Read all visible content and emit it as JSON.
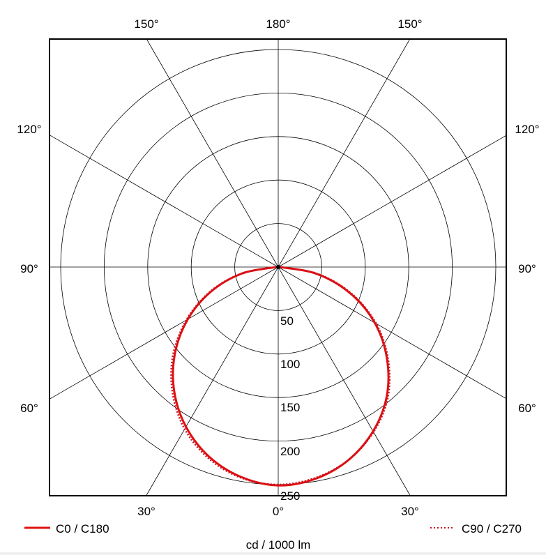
{
  "chart_data": {
    "type": "polar",
    "unit_label": "cd / 1000 lm",
    "radial_ticks": [
      50,
      100,
      150,
      200,
      250
    ],
    "radial_max": 262,
    "angle_labels": {
      "top_left": "150°",
      "top": "180°",
      "top_right": "150°",
      "left_120": "120°",
      "right_120": "120°",
      "left_90": "90°",
      "right_90": "90°",
      "left_60": "60°",
      "right_60": "60°",
      "bottom_left": "30°",
      "bottom": "0°",
      "bottom_right": "30°"
    },
    "angles": [
      0,
      10,
      20,
      30,
      40,
      50,
      60,
      70,
      80,
      90
    ],
    "series": [
      {
        "name": "C0 / C180",
        "style": "solid",
        "color": "#e01010",
        "right_values": [
          251,
          247,
          236,
          218,
          194,
          163,
          128,
          88,
          45,
          2
        ],
        "left_values": [
          251,
          245,
          232,
          212,
          186,
          155,
          120,
          82,
          42,
          2
        ]
      },
      {
        "name": "C90 / C270",
        "style": "dotted",
        "color": "#cc1020",
        "right_values": [
          250,
          246,
          236,
          219,
          196,
          165,
          130,
          90,
          47,
          2
        ],
        "left_values": [
          250,
          246,
          234,
          215,
          189,
          158,
          122,
          84,
          43,
          2
        ]
      }
    ],
    "grid": true,
    "legend": "bottom"
  }
}
